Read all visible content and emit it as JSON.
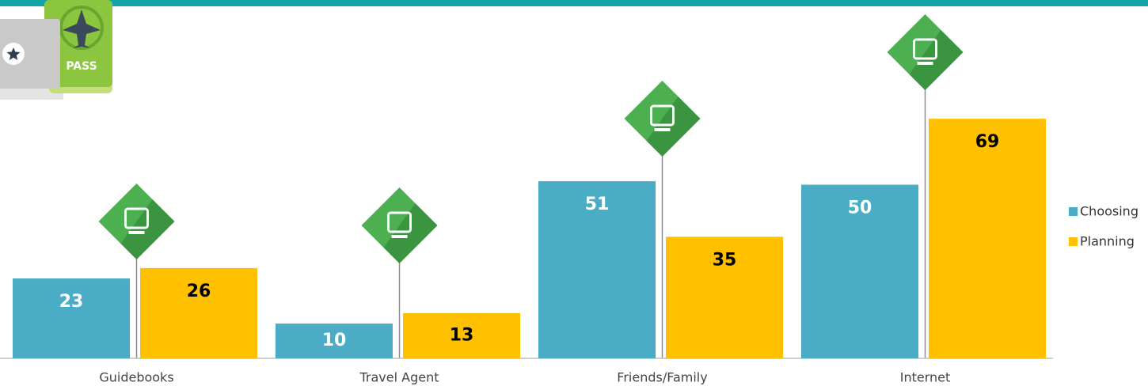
{
  "chart_data": {
    "type": "bar",
    "categories": [
      "Guidebooks",
      "Travel Agent",
      "Friends/Family",
      "Internet"
    ],
    "series": [
      {
        "name": "Choosing",
        "color": "#4bacc6",
        "values": [
          23,
          10,
          51,
          50
        ]
      },
      {
        "name": "Planning",
        "color": "#ffc000",
        "values": [
          26,
          13,
          35,
          69
        ]
      }
    ],
    "legend": "right"
  }
}
